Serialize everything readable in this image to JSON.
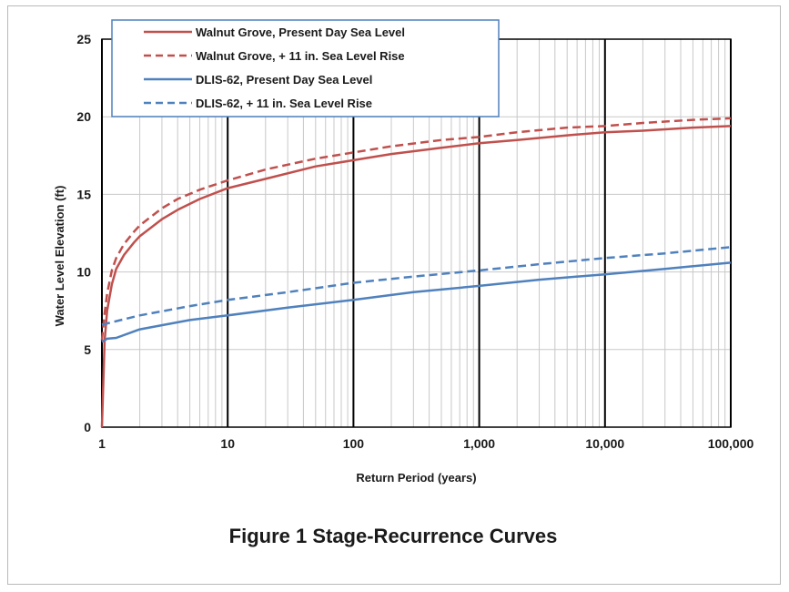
{
  "figure": {
    "caption": "Figure 1 Stage-Recurrence Curves"
  },
  "chart_data": {
    "type": "line",
    "xscale": "log",
    "xlim": [
      1,
      100000
    ],
    "ylim": [
      0,
      25
    ],
    "xticks": [
      1,
      10,
      100,
      1000,
      10000,
      100000
    ],
    "xtick_labels": [
      "1",
      "10",
      "100",
      "1,000",
      "10,000",
      "100,000"
    ],
    "yticks": [
      0,
      5,
      10,
      15,
      20,
      25
    ],
    "ytick_labels": [
      "0",
      "5",
      "10",
      "15",
      "20",
      "25"
    ],
    "xlabel": "Return Period (years)",
    "ylabel": "Water Level Elevation  (ft)",
    "grid": true,
    "legend_position": "top-left",
    "series": [
      {
        "name": "Walnut Grove, Present Day Sea Level",
        "color": "#c0504d",
        "style": "solid",
        "x": [
          1,
          1.05,
          1.1,
          1.2,
          1.3,
          1.5,
          1.8,
          2,
          3,
          4,
          6,
          10,
          20,
          50,
          100,
          200,
          500,
          1000,
          2000,
          5000,
          10000,
          20000,
          50000,
          100000
        ],
        "y": [
          0,
          5.5,
          7.5,
          9.2,
          10.2,
          11.1,
          11.9,
          12.3,
          13.4,
          14.0,
          14.7,
          15.4,
          16.0,
          16.8,
          17.2,
          17.6,
          18.0,
          18.3,
          18.5,
          18.8,
          19.0,
          19.1,
          19.3,
          19.4
        ]
      },
      {
        "name": "Walnut Grove, + 11 in. Sea Level Rise",
        "color": "#c0504d",
        "style": "dashed",
        "x": [
          1,
          1.05,
          1.1,
          1.2,
          1.3,
          1.5,
          1.8,
          2,
          3,
          4,
          6,
          10,
          20,
          50,
          100,
          200,
          500,
          1000,
          2000,
          5000,
          10000,
          20000,
          50000,
          100000
        ],
        "y": [
          5.6,
          7.3,
          8.6,
          10.1,
          10.9,
          11.8,
          12.6,
          13.0,
          14.1,
          14.7,
          15.3,
          15.9,
          16.6,
          17.3,
          17.7,
          18.1,
          18.5,
          18.7,
          19.0,
          19.3,
          19.4,
          19.6,
          19.8,
          19.9
        ]
      },
      {
        "name": "DLIS-62, Present Day Sea Level",
        "color": "#4f81bd",
        "style": "solid",
        "x": [
          1,
          1.1,
          1.3,
          2,
          5,
          10,
          30,
          100,
          300,
          1000,
          3000,
          10000,
          30000,
          100000
        ],
        "y": [
          5.5,
          5.7,
          5.75,
          6.3,
          6.9,
          7.2,
          7.7,
          8.2,
          8.7,
          9.1,
          9.5,
          9.85,
          10.2,
          10.6
        ]
      },
      {
        "name": "DLIS-62, + 11 in. Sea Level Rise",
        "color": "#4f81bd",
        "style": "dashed",
        "x": [
          1,
          2,
          5,
          10,
          30,
          100,
          300,
          1000,
          3000,
          10000,
          30000,
          100000
        ],
        "y": [
          6.6,
          7.2,
          7.8,
          8.2,
          8.7,
          9.3,
          9.7,
          10.1,
          10.5,
          10.9,
          11.2,
          11.6
        ]
      }
    ]
  }
}
